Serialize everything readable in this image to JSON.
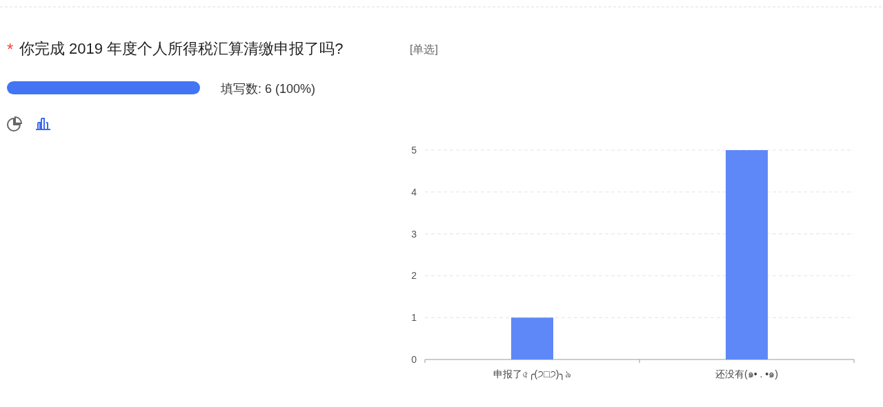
{
  "chart_data": {
    "type": "bar",
    "title": "你完成 2019 年度个人所得税汇算清缴申报了吗?",
    "subtitle": "[单选]",
    "annotations": [
      "*",
      "填写数: 6 (100%)"
    ],
    "categories": [
      "申报了৫╭(੭□੭)╮৯",
      "还没有(๑• . •๑)"
    ],
    "values": [
      1,
      5
    ],
    "color": "#5e88f7",
    "ylim": [
      0,
      5
    ],
    "yticks": [
      0,
      1,
      2,
      3,
      4,
      5
    ],
    "grid": "y"
  }
}
